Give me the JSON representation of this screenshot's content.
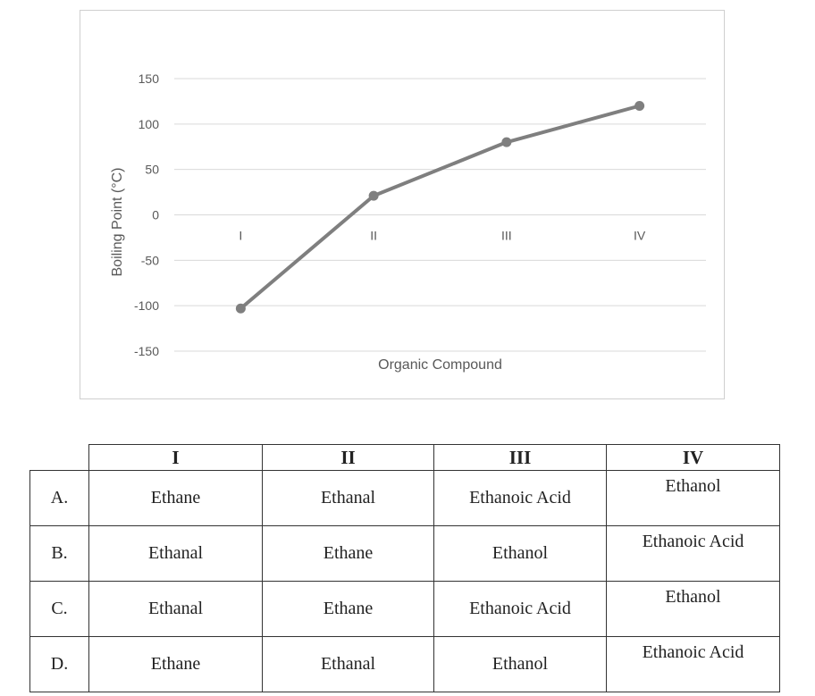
{
  "chart_data": {
    "type": "line",
    "categories": [
      "I",
      "II",
      "III",
      "IV"
    ],
    "series": [
      {
        "values": [
          -103,
          21,
          80,
          120
        ]
      }
    ],
    "ylabel": "Boiling Point (°C)",
    "xlabel": "Organic Compound",
    "ylim": [
      -150,
      150
    ],
    "yticks": [
      150,
      100,
      50,
      0,
      -50,
      -100,
      -150
    ],
    "grid": true,
    "line_color": "#7f7f7f"
  },
  "table": {
    "headers": [
      "I",
      "II",
      "III",
      "IV"
    ],
    "rows": [
      {
        "label": "A.",
        "cells": [
          "Ethane",
          "Ethanal",
          "Ethanoic Acid",
          "Ethanol"
        ]
      },
      {
        "label": "B.",
        "cells": [
          "Ethanal",
          "Ethane",
          "Ethanol",
          "Ethanoic Acid"
        ]
      },
      {
        "label": "C.",
        "cells": [
          "Ethanal",
          "Ethane",
          "Ethanoic Acid",
          "Ethanol"
        ]
      },
      {
        "label": "D.",
        "cells": [
          "Ethane",
          "Ethanal",
          "Ethanol",
          "Ethanoic Acid"
        ]
      }
    ]
  }
}
